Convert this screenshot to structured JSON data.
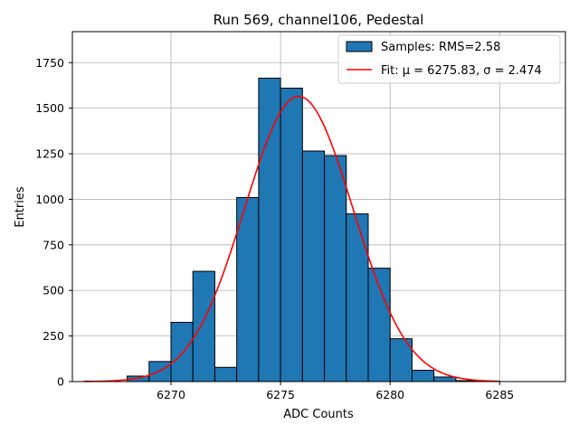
{
  "chart_data": {
    "type": "bar",
    "title": "Run 569, channel106, Pedestal",
    "xlabel": "ADC Counts",
    "ylabel": "Entries",
    "xlim": [
      6265.5,
      6288
    ],
    "ylim": [
      0,
      1920
    ],
    "grid": true,
    "legend_position": "top-right",
    "x_ticks": [
      6270,
      6275,
      6280,
      6285
    ],
    "y_ticks": [
      0,
      250,
      500,
      750,
      1000,
      1250,
      1500,
      1750
    ],
    "bin_width": 1,
    "bins": [
      {
        "left": 6266,
        "value": 0
      },
      {
        "left": 6267,
        "value": 0
      },
      {
        "left": 6268,
        "value": 30
      },
      {
        "left": 6269,
        "value": 110
      },
      {
        "left": 6270,
        "value": 325
      },
      {
        "left": 6271,
        "value": 605
      },
      {
        "left": 6272,
        "value": 78
      },
      {
        "left": 6273,
        "value": 1010
      },
      {
        "left": 6274,
        "value": 1665
      },
      {
        "left": 6275,
        "value": 1610
      },
      {
        "left": 6276,
        "value": 1265
      },
      {
        "left": 6277,
        "value": 1240
      },
      {
        "left": 6278,
        "value": 920
      },
      {
        "left": 6279,
        "value": 622
      },
      {
        "left": 6280,
        "value": 235
      },
      {
        "left": 6281,
        "value": 62
      },
      {
        "left": 6282,
        "value": 25
      },
      {
        "left": 6283,
        "value": 5
      },
      {
        "left": 6284,
        "value": 2
      },
      {
        "left": 6285,
        "value": 0
      },
      {
        "left": 6286,
        "value": 0
      }
    ],
    "series": [
      {
        "name": "Samples: RMS=2.58",
        "type": "histogram",
        "color": "#1f77b4",
        "edge_color": "#000000"
      },
      {
        "name": "Fit: μ = 6275.83, σ = 2.474",
        "type": "gaussian",
        "color": "#ff0000",
        "mu": 6275.83,
        "sigma": 2.474,
        "amplitude": 1565,
        "x_range": [
          6266,
          6285
        ]
      }
    ]
  }
}
